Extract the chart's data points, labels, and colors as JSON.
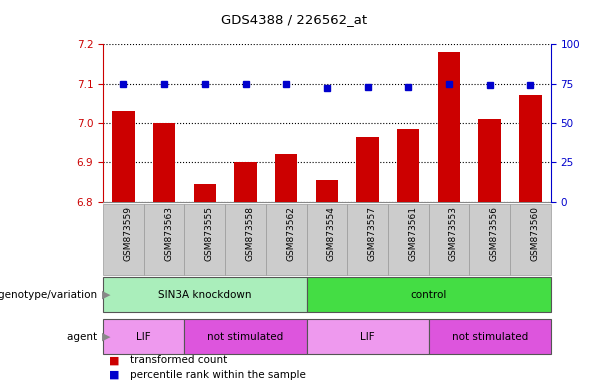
{
  "title": "GDS4388 / 226562_at",
  "samples": [
    "GSM873559",
    "GSM873563",
    "GSM873555",
    "GSM873558",
    "GSM873562",
    "GSM873554",
    "GSM873557",
    "GSM873561",
    "GSM873553",
    "GSM873556",
    "GSM873560"
  ],
  "bar_values": [
    7.03,
    7.0,
    6.845,
    6.9,
    6.92,
    6.855,
    6.965,
    6.985,
    7.18,
    7.01,
    7.07
  ],
  "percentile_values": [
    75,
    75,
    75,
    75,
    75,
    72,
    73,
    73,
    75,
    74,
    74
  ],
  "ylim_left": [
    6.8,
    7.2
  ],
  "ylim_right": [
    0,
    100
  ],
  "yticks_left": [
    6.8,
    6.9,
    7.0,
    7.1,
    7.2
  ],
  "yticks_right": [
    0,
    25,
    50,
    75,
    100
  ],
  "bar_color": "#cc0000",
  "percentile_color": "#0000cc",
  "bar_base": 6.8,
  "groups": [
    {
      "label": "SIN3A knockdown",
      "start": 0,
      "end": 5,
      "color": "#aaeebb"
    },
    {
      "label": "control",
      "start": 5,
      "end": 11,
      "color": "#44dd44"
    }
  ],
  "agents": [
    {
      "label": "LIF",
      "start": 0,
      "end": 2,
      "color": "#ee99ee"
    },
    {
      "label": "not stimulated",
      "start": 2,
      "end": 5,
      "color": "#dd55dd"
    },
    {
      "label": "LIF",
      "start": 5,
      "end": 8,
      "color": "#ee99ee"
    },
    {
      "label": "not stimulated",
      "start": 8,
      "end": 11,
      "color": "#dd55dd"
    }
  ],
  "genotype_label": "genotype/variation",
  "agent_label": "agent",
  "legend_items": [
    {
      "label": "transformed count",
      "color": "#cc0000"
    },
    {
      "label": "percentile rank within the sample",
      "color": "#0000cc"
    }
  ],
  "tick_label_color": "#cc0000",
  "right_tick_color": "#0000cc",
  "grid_color": "#000000",
  "sample_cell_color": "#cccccc",
  "sample_cell_edge": "#999999"
}
